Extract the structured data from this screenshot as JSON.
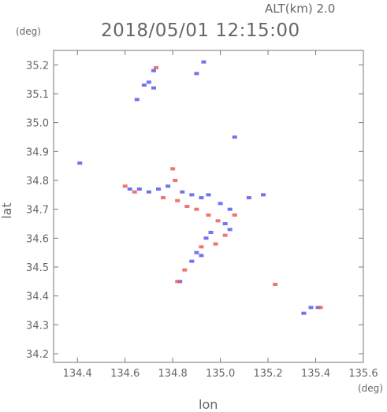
{
  "header": {
    "altitude": "ALT(km)  2.0",
    "timestamp": "2018/05/01 12:15:00"
  },
  "chart_data": {
    "type": "scatter",
    "title": "2018/05/01 12:15:00",
    "xlabel": "lon",
    "ylabel": "lat",
    "xunit": "(deg)",
    "yunit": "(deg)",
    "xlim": [
      134.3,
      135.6
    ],
    "ylim": [
      34.17,
      35.25
    ],
    "xticks": [
      "134.4",
      "134.6",
      "134.8",
      "135.0",
      "135.2",
      "135.4",
      "135.6"
    ],
    "yticks": [
      "34.2",
      "34.3",
      "34.4",
      "34.5",
      "34.6",
      "34.7",
      "34.8",
      "34.9",
      "35.0",
      "35.1",
      "35.2"
    ],
    "grid": false,
    "colors": {
      "positive": "#f05a5a",
      "negative": "#5a5af0"
    },
    "series": [
      {
        "values": [
          [
            134.68,
            35.13
          ],
          [
            134.7,
            35.14
          ],
          [
            134.72,
            35.12
          ],
          [
            134.65,
            35.08
          ],
          [
            134.72,
            35.18
          ],
          [
            134.9,
            35.17
          ],
          [
            134.93,
            35.21
          ],
          [
            135.06,
            34.95
          ],
          [
            134.41,
            34.86
          ],
          [
            134.62,
            34.77
          ],
          [
            134.66,
            34.77
          ],
          [
            134.7,
            34.76
          ],
          [
            134.74,
            34.77
          ],
          [
            134.78,
            34.78
          ],
          [
            134.84,
            34.76
          ],
          [
            134.88,
            34.75
          ],
          [
            134.92,
            34.74
          ],
          [
            134.95,
            34.75
          ],
          [
            135.0,
            34.72
          ],
          [
            135.04,
            34.7
          ],
          [
            135.02,
            34.65
          ],
          [
            135.04,
            34.63
          ],
          [
            134.96,
            34.62
          ],
          [
            134.94,
            34.6
          ],
          [
            134.9,
            34.55
          ],
          [
            134.92,
            34.54
          ],
          [
            134.88,
            34.52
          ],
          [
            134.83,
            34.45
          ],
          [
            135.12,
            34.74
          ],
          [
            135.18,
            34.75
          ],
          [
            135.35,
            34.34
          ],
          [
            135.38,
            34.36
          ],
          [
            135.41,
            34.36
          ]
        ]
      },
      {
        "values": [
          [
            134.73,
            35.19
          ],
          [
            134.8,
            34.84
          ],
          [
            134.81,
            34.8
          ],
          [
            134.6,
            34.78
          ],
          [
            134.64,
            34.76
          ],
          [
            134.76,
            34.74
          ],
          [
            134.82,
            34.73
          ],
          [
            134.86,
            34.71
          ],
          [
            134.9,
            34.7
          ],
          [
            134.95,
            34.68
          ],
          [
            134.99,
            34.66
          ],
          [
            135.06,
            34.68
          ],
          [
            135.02,
            34.61
          ],
          [
            134.98,
            34.58
          ],
          [
            134.92,
            34.57
          ],
          [
            134.85,
            34.49
          ],
          [
            134.82,
            34.45
          ],
          [
            135.23,
            34.44
          ],
          [
            135.42,
            34.36
          ]
        ]
      }
    ]
  }
}
